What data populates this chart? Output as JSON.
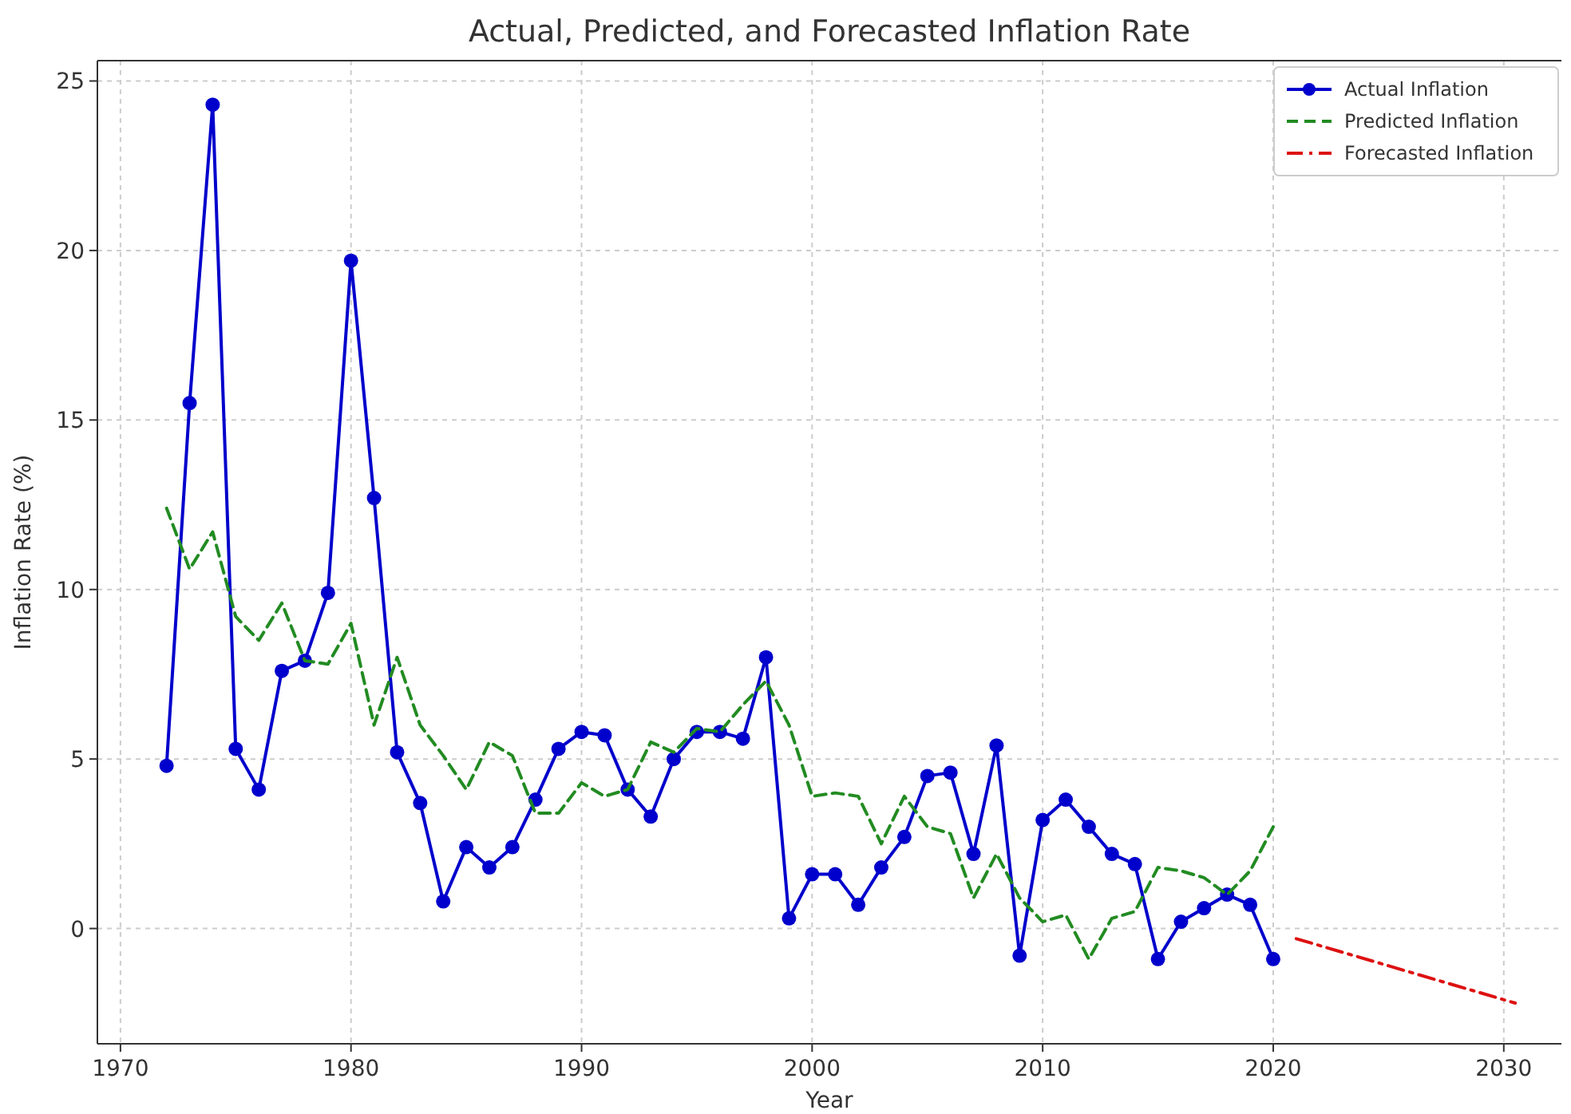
{
  "chart_data": {
    "type": "line",
    "title": "Actual, Predicted, and Forecasted Inflation Rate",
    "xlabel": "Year",
    "ylabel": "Inflation Rate (%)",
    "xlim": [
      1969,
      2032.5
    ],
    "xticks": [
      1970,
      1980,
      1990,
      2000,
      2010,
      2020,
      2030
    ],
    "ylim": [
      -3.4,
      25.6
    ],
    "yticks": [
      0,
      5,
      10,
      15,
      20,
      25
    ],
    "grid": true,
    "legend": "top right",
    "series": [
      {
        "name": "Actual Inflation",
        "color": "#0000cc",
        "marker": "circle",
        "line_style": "solid",
        "x": [
          1972,
          1973,
          1974,
          1975,
          1976,
          1977,
          1978,
          1979,
          1980,
          1981,
          1982,
          1983,
          1984,
          1985,
          1986,
          1987,
          1988,
          1989,
          1990,
          1991,
          1992,
          1993,
          1994,
          1995,
          1996,
          1997,
          1998,
          1999,
          2000,
          2001,
          2002,
          2003,
          2004,
          2005,
          2006,
          2007,
          2008,
          2009,
          2010,
          2011,
          2012,
          2013,
          2014,
          2015,
          2016,
          2017,
          2018,
          2019,
          2020
        ],
        "values": [
          4.8,
          15.5,
          24.3,
          5.3,
          4.1,
          7.6,
          7.9,
          9.9,
          19.7,
          12.7,
          5.2,
          3.7,
          0.8,
          2.4,
          1.8,
          2.4,
          3.8,
          5.3,
          5.8,
          5.7,
          4.1,
          3.3,
          5.0,
          5.8,
          5.8,
          5.6,
          8.0,
          0.3,
          1.6,
          1.6,
          0.7,
          1.8,
          2.7,
          4.5,
          4.6,
          2.2,
          5.4,
          -0.8,
          3.2,
          3.8,
          3.0,
          2.2,
          1.9,
          -0.9,
          0.2,
          0.6,
          1.0,
          0.7,
          -0.9
        ]
      },
      {
        "name": "Predicted Inflation",
        "color": "#228b22",
        "marker": "none",
        "line_style": "dashed",
        "x": [
          1972,
          1973,
          1974,
          1975,
          1976,
          1977,
          1978,
          1979,
          1980,
          1981,
          1982,
          1983,
          1984,
          1985,
          1986,
          1987,
          1988,
          1989,
          1990,
          1991,
          1992,
          1993,
          1994,
          1995,
          1996,
          1997,
          1998,
          1999,
          2000,
          2001,
          2002,
          2003,
          2004,
          2005,
          2006,
          2007,
          2008,
          2009,
          2010,
          2011,
          2012,
          2013,
          2014,
          2015,
          2016,
          2017,
          2018,
          2019,
          2020
        ],
        "values": [
          12.4,
          10.6,
          11.7,
          9.2,
          8.5,
          9.6,
          7.9,
          7.8,
          9.0,
          6.0,
          8.0,
          6.0,
          5.1,
          4.1,
          5.5,
          5.1,
          3.4,
          3.4,
          4.3,
          3.9,
          4.1,
          5.5,
          5.2,
          5.9,
          5.8,
          6.6,
          7.3,
          6.0,
          3.9,
          4.0,
          3.9,
          2.5,
          3.9,
          3.0,
          2.8,
          0.9,
          2.2,
          0.9,
          0.2,
          0.4,
          -0.9,
          0.3,
          0.5,
          1.8,
          1.7,
          1.5,
          1.0,
          1.7,
          3.0
        ]
      },
      {
        "name": "Forecasted Inflation",
        "color": "#dd1111",
        "marker": "none",
        "line_style": "dashdot",
        "x": [
          2021,
          2030.5
        ],
        "values": [
          -0.3,
          -2.2
        ]
      }
    ]
  }
}
